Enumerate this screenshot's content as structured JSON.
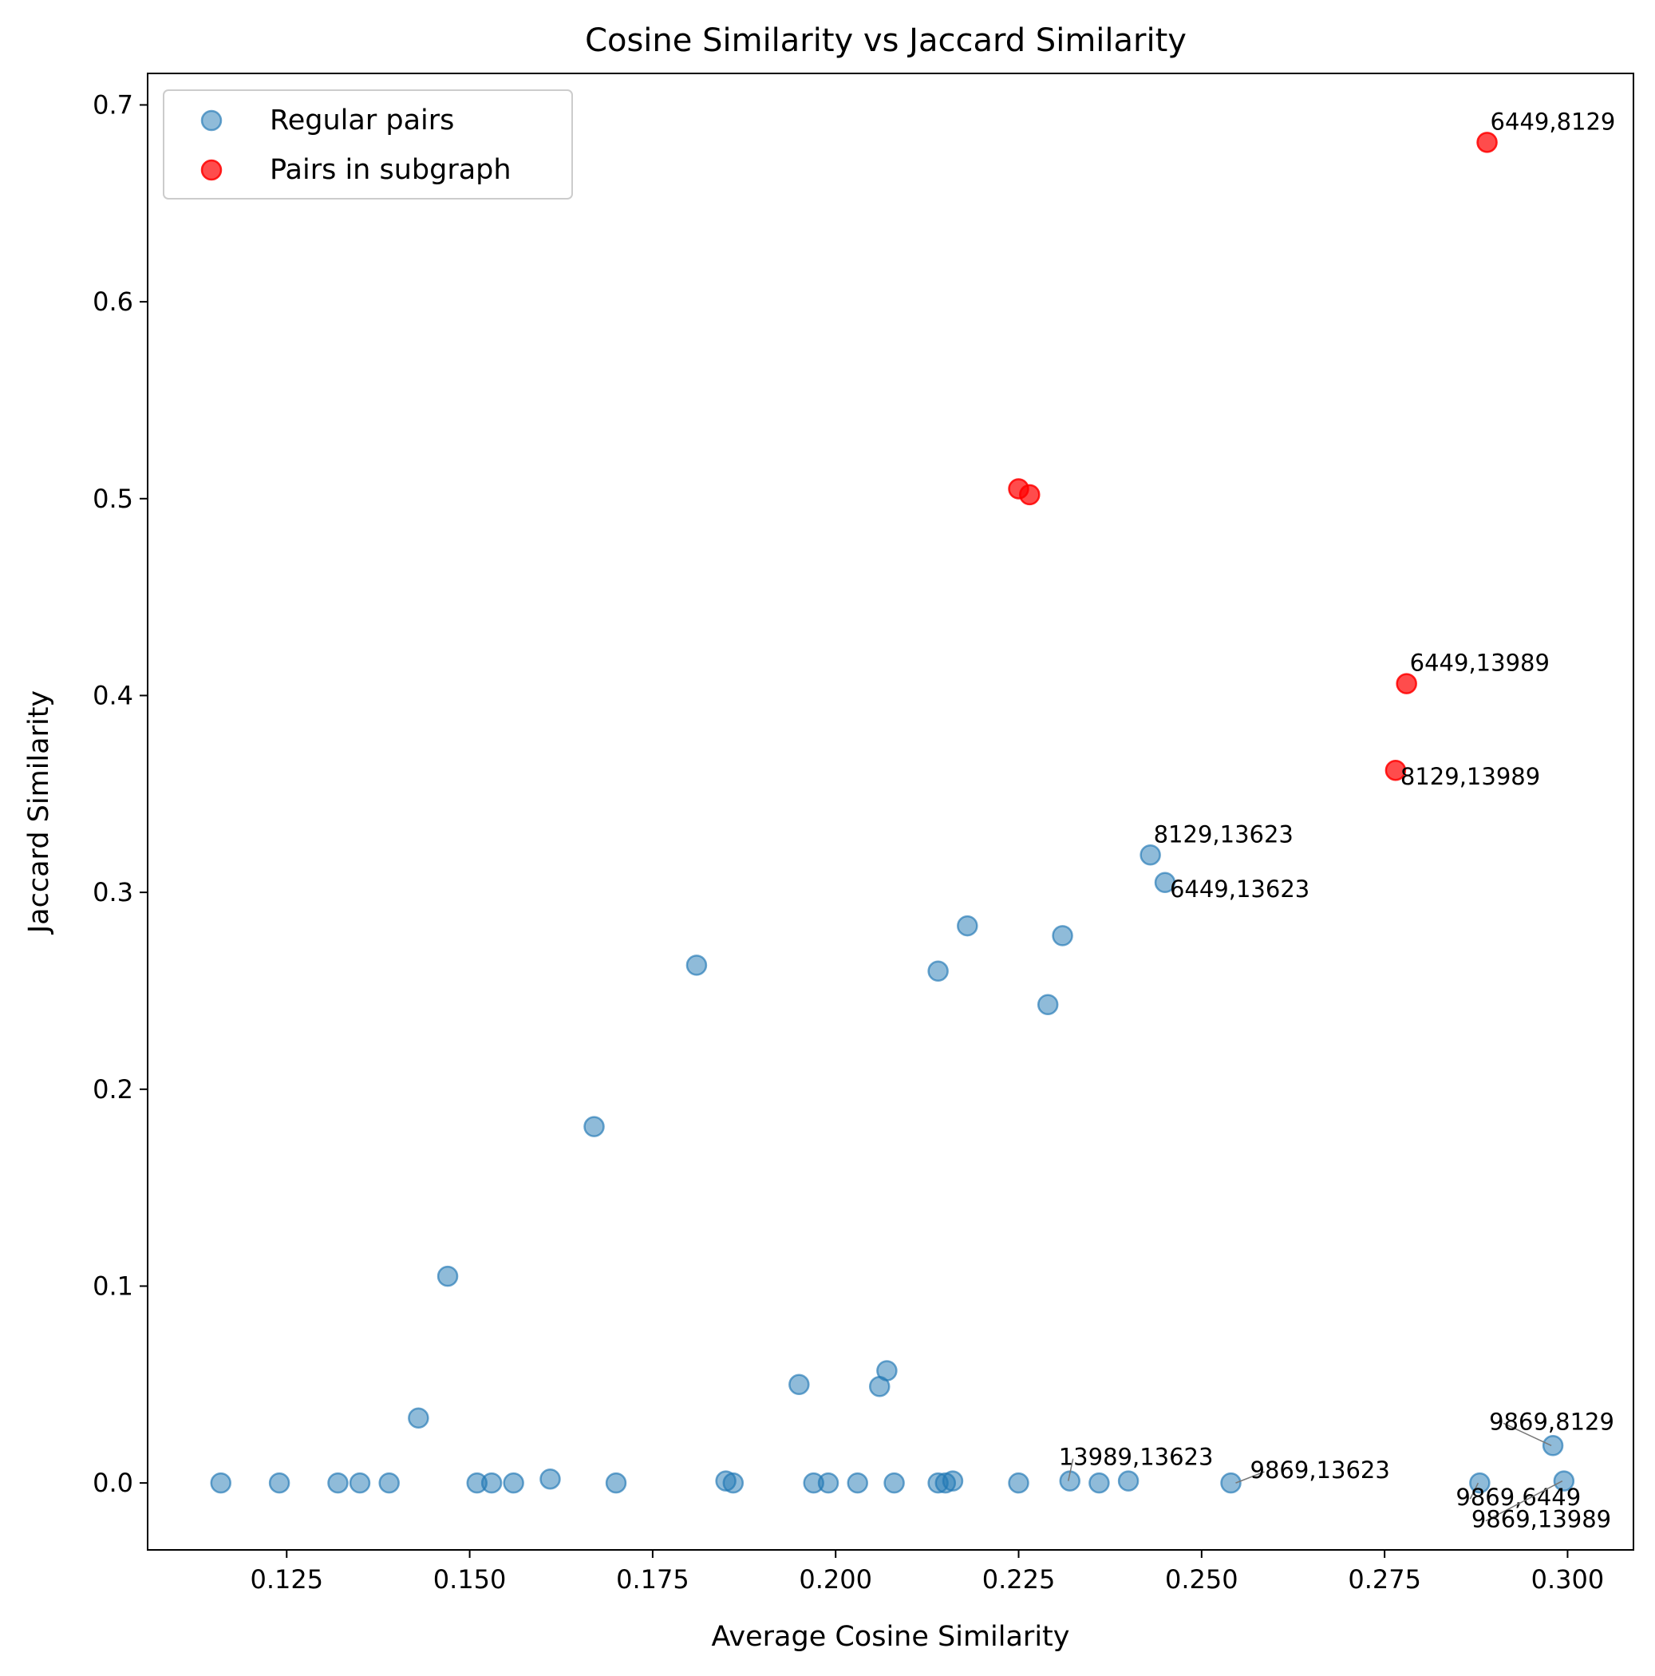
{
  "chart_data": {
    "type": "scatter",
    "title": "Cosine Similarity vs Jaccard Similarity",
    "xlabel": "Average Cosine Similarity",
    "ylabel": "Jaccard Similarity",
    "xlim": [
      0.106,
      0.309
    ],
    "ylim": [
      -0.034,
      0.716
    ],
    "xticks": [
      0.125,
      0.15,
      0.175,
      0.2,
      0.225,
      0.25,
      0.275,
      0.3
    ],
    "xtick_labels": [
      "0.125",
      "0.150",
      "0.175",
      "0.200",
      "0.225",
      "0.250",
      "0.275",
      "0.300"
    ],
    "yticks": [
      0.0,
      0.1,
      0.2,
      0.3,
      0.4,
      0.5,
      0.6,
      0.7
    ],
    "ytick_labels": [
      "0.0",
      "0.1",
      "0.2",
      "0.3",
      "0.4",
      "0.5",
      "0.6",
      "0.7"
    ],
    "grid": false,
    "legend_position": "top-left",
    "series": [
      {
        "name": "Regular pairs",
        "color": "#1f77b4",
        "alpha": 0.5,
        "points": [
          {
            "x": 0.116,
            "y": 0.0
          },
          {
            "x": 0.124,
            "y": 0.0
          },
          {
            "x": 0.132,
            "y": 0.0
          },
          {
            "x": 0.135,
            "y": 0.0
          },
          {
            "x": 0.139,
            "y": 0.0
          },
          {
            "x": 0.143,
            "y": 0.033
          },
          {
            "x": 0.147,
            "y": 0.105
          },
          {
            "x": 0.151,
            "y": 0.0
          },
          {
            "x": 0.153,
            "y": 0.0
          },
          {
            "x": 0.156,
            "y": 0.0
          },
          {
            "x": 0.161,
            "y": 0.002
          },
          {
            "x": 0.167,
            "y": 0.181
          },
          {
            "x": 0.17,
            "y": 0.0
          },
          {
            "x": 0.181,
            "y": 0.263
          },
          {
            "x": 0.185,
            "y": 0.001
          },
          {
            "x": 0.186,
            "y": 0.0
          },
          {
            "x": 0.195,
            "y": 0.05
          },
          {
            "x": 0.197,
            "y": 0.0
          },
          {
            "x": 0.199,
            "y": 0.0
          },
          {
            "x": 0.203,
            "y": 0.0
          },
          {
            "x": 0.206,
            "y": 0.049
          },
          {
            "x": 0.207,
            "y": 0.057
          },
          {
            "x": 0.208,
            "y": 0.0
          },
          {
            "x": 0.214,
            "y": 0.26
          },
          {
            "x": 0.214,
            "y": 0.0
          },
          {
            "x": 0.215,
            "y": 0.0
          },
          {
            "x": 0.216,
            "y": 0.001
          },
          {
            "x": 0.218,
            "y": 0.283
          },
          {
            "x": 0.225,
            "y": 0.0
          },
          {
            "x": 0.229,
            "y": 0.243
          },
          {
            "x": 0.231,
            "y": 0.278
          },
          {
            "x": 0.232,
            "y": 0.001
          },
          {
            "x": 0.236,
            "y": 0.0
          },
          {
            "x": 0.24,
            "y": 0.001
          },
          {
            "x": 0.243,
            "y": 0.319
          },
          {
            "x": 0.245,
            "y": 0.305
          },
          {
            "x": 0.254,
            "y": 0.0
          },
          {
            "x": 0.288,
            "y": 0.0
          },
          {
            "x": 0.298,
            "y": 0.019
          },
          {
            "x": 0.2995,
            "y": 0.001
          }
        ]
      },
      {
        "name": "Pairs in subgraph",
        "color": "#ff0000",
        "alpha": 0.7,
        "points": [
          {
            "x": 0.225,
            "y": 0.505
          },
          {
            "x": 0.2265,
            "y": 0.502
          },
          {
            "x": 0.2765,
            "y": 0.362
          },
          {
            "x": 0.278,
            "y": 0.406
          },
          {
            "x": 0.289,
            "y": 0.681
          }
        ]
      }
    ],
    "annotations": [
      {
        "text": "6449,8129",
        "x": 0.289,
        "y": 0.681
      },
      {
        "text": "6449,13989",
        "x": 0.278,
        "y": 0.406
      },
      {
        "text": "8129,13989",
        "x": 0.2765,
        "y": 0.362
      },
      {
        "text": "8129,13623",
        "x": 0.243,
        "y": 0.319
      },
      {
        "text": "6449,13623",
        "x": 0.245,
        "y": 0.305
      },
      {
        "text": "9869,8129",
        "x": 0.298,
        "y": 0.019
      },
      {
        "text": "13989,13623",
        "x": 0.232,
        "y": 0.001
      },
      {
        "text": "9869,13623",
        "x": 0.254,
        "y": 0.0
      },
      {
        "text": "9869,6449",
        "x": 0.288,
        "y": 0.0
      },
      {
        "text": "9869,13989",
        "x": 0.2995,
        "y": 0.001
      }
    ]
  }
}
